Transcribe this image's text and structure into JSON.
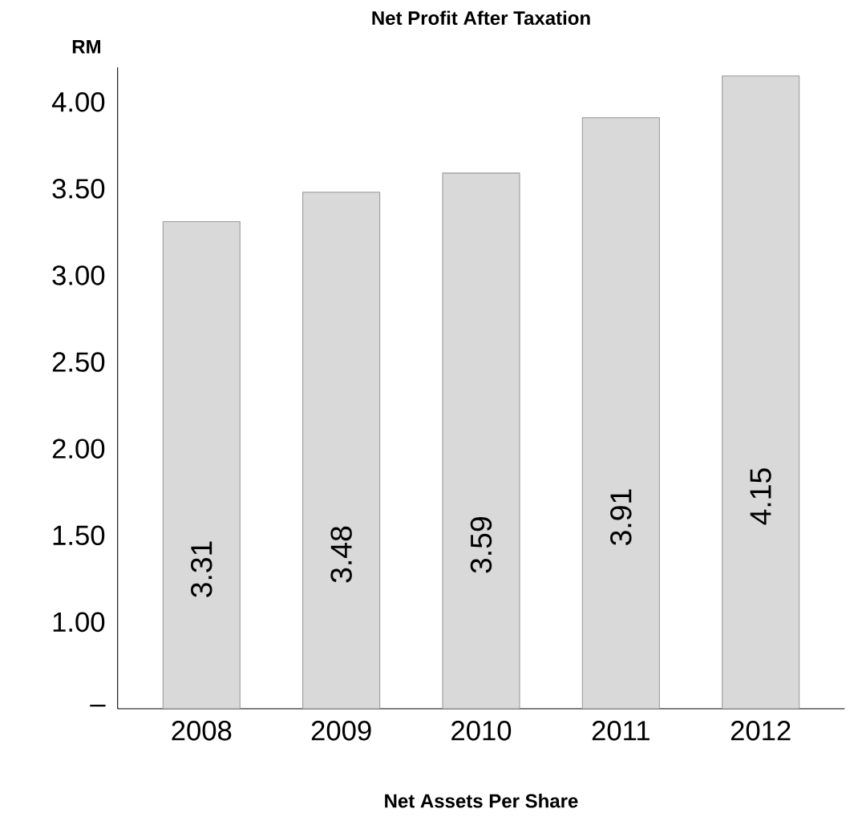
{
  "chart_data": {
    "type": "bar",
    "xlabel": "Net Assets Per Share",
    "ylabel": "RM",
    "annotations": [
      "Net Profit After Taxation"
    ],
    "categories": [
      "2008",
      "2009",
      "2010",
      "2011",
      "2012"
    ],
    "values": [
      3.31,
      3.48,
      3.59,
      3.91,
      4.15
    ],
    "color": "#d9d9d9",
    "data_labels": true,
    "grid": false,
    "ylim": [
      0.5,
      4.2
    ],
    "yticks": [
      {
        "value": 0.5,
        "label": "–"
      },
      {
        "value": 1,
        "label": "1.00"
      },
      {
        "value": 1.5,
        "label": "1.50"
      },
      {
        "value": 2,
        "label": "2.00"
      },
      {
        "value": 2.5,
        "label": "2.50"
      },
      {
        "value": 3,
        "label": "3.00"
      },
      {
        "value": 3.5,
        "label": "3.50"
      },
      {
        "value": 4,
        "label": "4.00"
      }
    ]
  }
}
